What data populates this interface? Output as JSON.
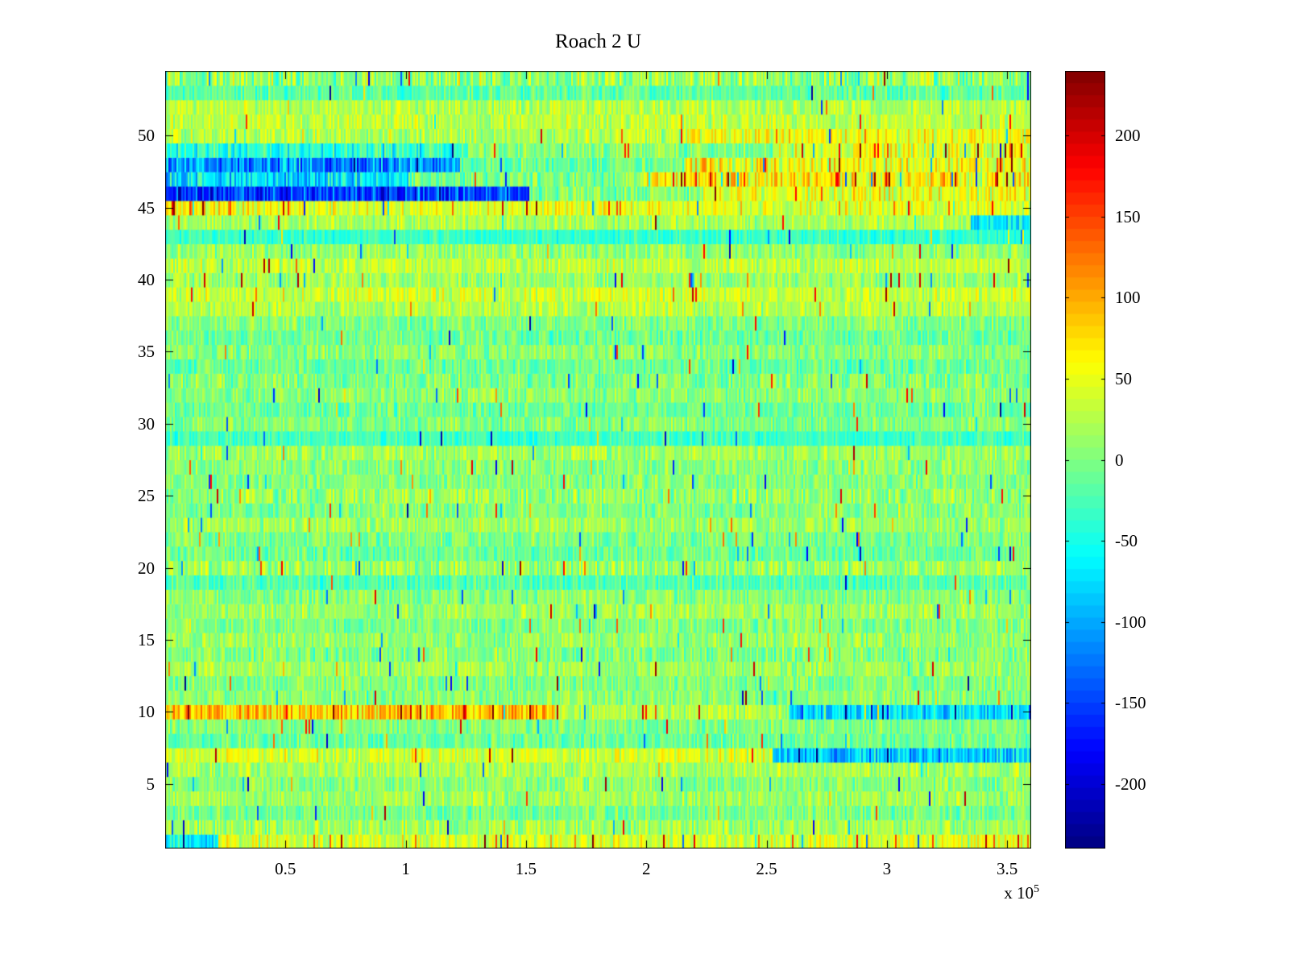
{
  "chart_data": {
    "type": "heatmap",
    "title": "Roach 2 U",
    "colormap": "jet",
    "grid": false,
    "x_axis": {
      "min": 0,
      "max": 360000,
      "scale": {
        "prefix": "x 10",
        "exponent": "5"
      },
      "ticks": [
        {
          "value": 50000,
          "label": "0.5"
        },
        {
          "value": 100000,
          "label": "1"
        },
        {
          "value": 150000,
          "label": "1.5"
        },
        {
          "value": 200000,
          "label": "2"
        },
        {
          "value": 250000,
          "label": "2.5"
        },
        {
          "value": 300000,
          "label": "3"
        },
        {
          "value": 350000,
          "label": "3.5"
        }
      ]
    },
    "y_axis": {
      "min": 0.5,
      "max": 54.5,
      "ticks": [
        {
          "value": 5,
          "label": "5"
        },
        {
          "value": 10,
          "label": "10"
        },
        {
          "value": 15,
          "label": "15"
        },
        {
          "value": 20,
          "label": "20"
        },
        {
          "value": 25,
          "label": "25"
        },
        {
          "value": 30,
          "label": "30"
        },
        {
          "value": 35,
          "label": "35"
        },
        {
          "value": 40,
          "label": "40"
        },
        {
          "value": 45,
          "label": "45"
        },
        {
          "value": 50,
          "label": "50"
        }
      ]
    },
    "colorbar": {
      "min": -240,
      "max": 240,
      "levels": 64,
      "ticks": [
        {
          "value": 200,
          "label": "200"
        },
        {
          "value": 150,
          "label": "150"
        },
        {
          "value": 100,
          "label": "100"
        },
        {
          "value": 50,
          "label": "50"
        },
        {
          "value": 0,
          "label": "0"
        },
        {
          "value": -50,
          "label": "-50"
        },
        {
          "value": -100,
          "label": "-100"
        },
        {
          "value": -150,
          "label": "-150"
        },
        {
          "value": -200,
          "label": "-200"
        }
      ]
    },
    "n_rows": 54,
    "rows": [
      {
        "b": 40,
        "a": 35,
        "sp": 0.08,
        "seg": [
          {
            "f": 0,
            "t": 0.06,
            "b": -60,
            "a": 40
          }
        ]
      },
      {
        "b": 15,
        "a": 35
      },
      {
        "b": -5,
        "a": 30
      },
      {
        "b": 15,
        "a": 30
      },
      {
        "b": 5,
        "a": 30
      },
      {
        "b": 20,
        "a": 30
      },
      {
        "b": 40,
        "a": 35,
        "seg": [
          {
            "f": 0.7,
            "t": 1,
            "b": -85,
            "a": 45
          }
        ]
      },
      {
        "b": -10,
        "a": 30
      },
      {
        "b": 0,
        "a": 30
      },
      {
        "b": 85,
        "a": 45,
        "sp": 0.06,
        "seg": [
          {
            "f": 0.45,
            "t": 0.72,
            "b": 25,
            "a": 30
          },
          {
            "f": 0.72,
            "t": 1,
            "b": -75,
            "a": 40
          }
        ]
      },
      {
        "b": 5,
        "a": 30
      },
      {
        "b": 0,
        "a": 30
      },
      {
        "b": 15,
        "a": 30
      },
      {
        "b": 0,
        "a": 35
      },
      {
        "b": 10,
        "a": 30
      },
      {
        "b": 0,
        "a": 30
      },
      {
        "b": 15,
        "a": 30
      },
      {
        "b": 5,
        "a": 30
      },
      {
        "b": -20,
        "a": 30
      },
      {
        "b": 15,
        "a": 35
      },
      {
        "b": -10,
        "a": 30
      },
      {
        "b": 0,
        "a": 30
      },
      {
        "b": 15,
        "a": 30
      },
      {
        "b": 0,
        "a": 30
      },
      {
        "b": 10,
        "a": 35
      },
      {
        "b": 0,
        "a": 30
      },
      {
        "b": 5,
        "a": 30
      },
      {
        "b": 15,
        "a": 30
      },
      {
        "b": -30,
        "a": 25
      },
      {
        "b": 0,
        "a": 30
      },
      {
        "b": -10,
        "a": 30
      },
      {
        "b": 5,
        "a": 30
      },
      {
        "b": 0,
        "a": 35
      },
      {
        "b": -10,
        "a": 30
      },
      {
        "b": 5,
        "a": 30
      },
      {
        "b": -10,
        "a": 30
      },
      {
        "b": 0,
        "a": 30
      },
      {
        "b": 25,
        "a": 30
      },
      {
        "b": 35,
        "a": 30
      },
      {
        "b": 15,
        "a": 30,
        "sp": 0.03
      },
      {
        "b": 30,
        "a": 30
      },
      {
        "b": 10,
        "a": 30
      },
      {
        "b": -35,
        "a": 25
      },
      {
        "b": 20,
        "a": 30,
        "seg": [
          {
            "f": 0.93,
            "t": 1,
            "b": -70,
            "a": 35
          }
        ]
      },
      {
        "b": 45,
        "a": 35,
        "sp": 0.04,
        "seg": [
          {
            "f": 0,
            "t": 0.18,
            "b": 60,
            "a": 45,
            "sp": 0.1
          }
        ]
      },
      {
        "b": -150,
        "a": 55,
        "seg": [
          {
            "f": 0.42,
            "t": 0.62,
            "b": 0,
            "a": 35
          },
          {
            "f": 0.62,
            "t": 1,
            "b": 50,
            "a": 40,
            "sp": 0.05
          }
        ]
      },
      {
        "b": -70,
        "a": 50,
        "seg": [
          {
            "f": 0.28,
            "t": 0.55,
            "b": -5,
            "a": 35
          },
          {
            "f": 0.55,
            "t": 1,
            "b": 65,
            "a": 50,
            "sp": 0.12
          }
        ]
      },
      {
        "b": -110,
        "a": 55,
        "seg": [
          {
            "f": 0.34,
            "t": 0.6,
            "b": -10,
            "a": 35
          },
          {
            "f": 0.6,
            "t": 1,
            "b": 55,
            "a": 45,
            "sp": 0.1
          }
        ]
      },
      {
        "b": -40,
        "a": 45,
        "seg": [
          {
            "f": 0.35,
            "t": 0.7,
            "b": 0,
            "a": 35
          },
          {
            "f": 0.7,
            "t": 1,
            "b": 45,
            "a": 45,
            "sp": 0.06
          }
        ]
      },
      {
        "b": 25,
        "a": 35,
        "seg": [
          {
            "f": 0.6,
            "t": 1,
            "b": 50,
            "a": 40,
            "sp": 0.04
          }
        ]
      },
      {
        "b": 30,
        "a": 30
      },
      {
        "b": 25,
        "a": 30
      },
      {
        "b": -15,
        "a": 30
      },
      {
        "b": 10,
        "a": 45,
        "sp": 0.05
      }
    ]
  }
}
